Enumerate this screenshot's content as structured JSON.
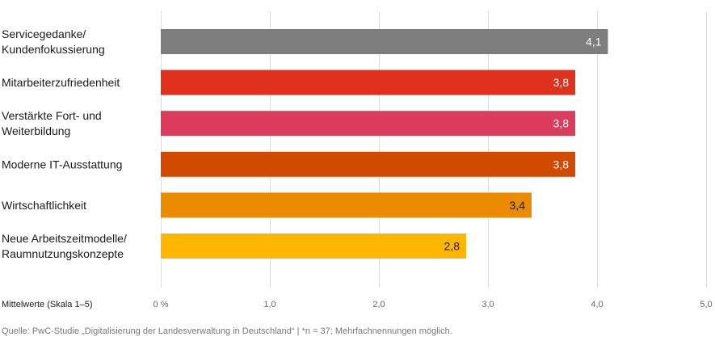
{
  "chart_data": {
    "type": "bar",
    "orientation": "horizontal",
    "categories": [
      [
        "Servicegedanke/",
        "Kundenfokussierung"
      ],
      [
        "Mitarbeiterzufriedenheit"
      ],
      [
        "Verstärkte Fort- und",
        "Weiterbildung"
      ],
      [
        "Moderne IT-Ausstattung"
      ],
      [
        "Wirtschaftlichkeit"
      ],
      [
        "Neue Arbeitszeitmodelle/",
        "Raumnutzungskonzepte"
      ]
    ],
    "values": [
      4.1,
      3.8,
      3.8,
      3.8,
      3.4,
      2.8
    ],
    "value_labels": [
      "4,1",
      "3,8",
      "3,8",
      "3,8",
      "3,4",
      "2,8"
    ],
    "colors": [
      "#7d7d7d",
      "#e0301e",
      "#db3b5c",
      "#d04a02",
      "#eb8c00",
      "#ffb600"
    ],
    "label_colors": [
      "#ffffff",
      "#ffffff",
      "#ffffff",
      "#ffffff",
      "#1a1a1a",
      "#1a1a1a"
    ],
    "xlim": [
      0,
      5
    ],
    "ticks": [
      0,
      1,
      2,
      3,
      4,
      5
    ],
    "tick_labels": [
      "0 %",
      "1,0",
      "2,0",
      "3,0",
      "4,0",
      "5,0"
    ],
    "xlabel": "Mittelwerte (Skala 1–5)",
    "grid": true
  },
  "source_text": "Quelle: PwC-Studie „Digitalisierung der Landesverwaltung in Deutschland“ | *n = 37; Mehrfachnennungen möglich."
}
